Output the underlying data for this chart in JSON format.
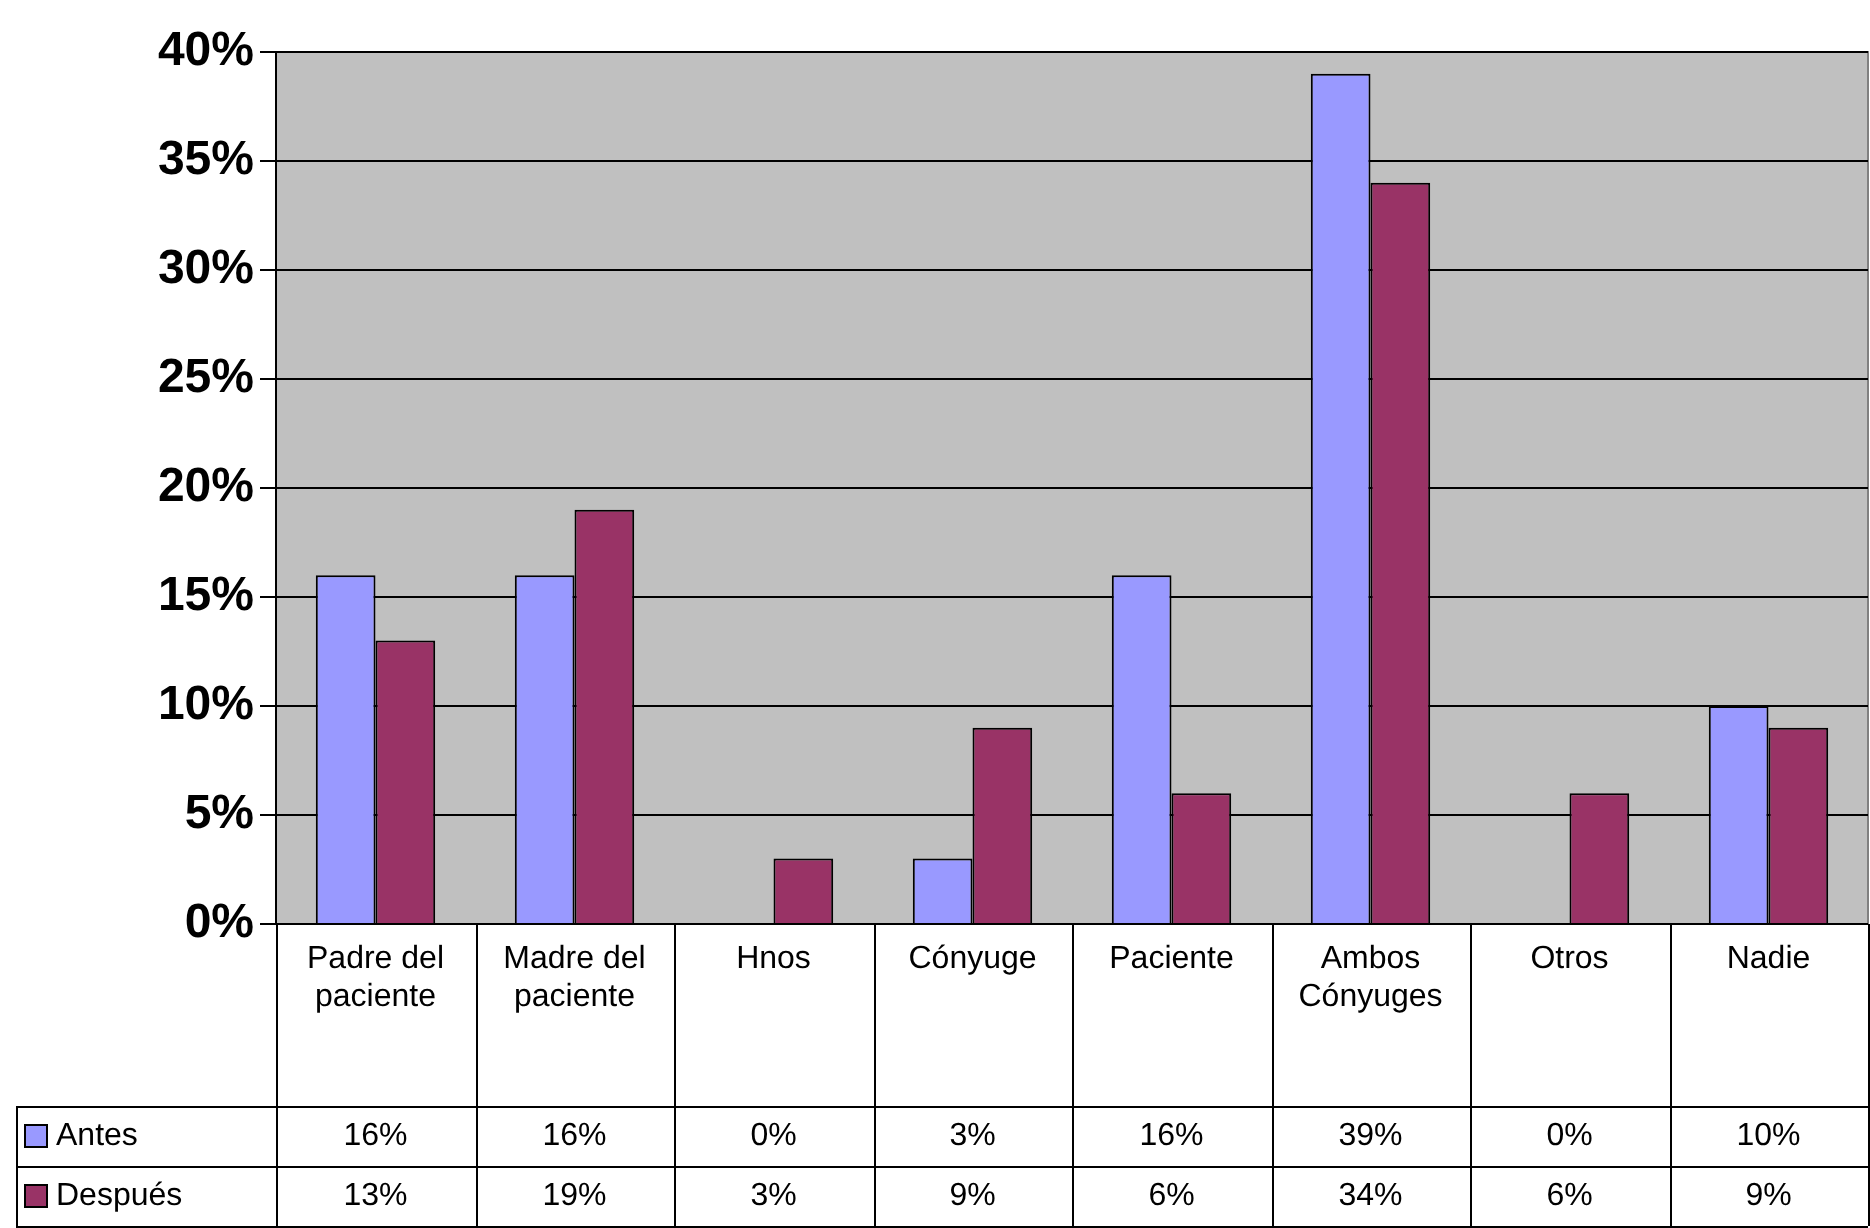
{
  "chart_data": {
    "type": "bar",
    "categories": [
      "Padre del paciente",
      "Madre del paciente",
      "Hnos",
      "Cónyuge",
      "Paciente",
      "Ambos Cónyuges",
      "Otros",
      "Nadie"
    ],
    "series": [
      {
        "name": "Antes",
        "color": "#9999ff",
        "values": [
          16,
          16,
          0,
          3,
          16,
          39,
          0,
          10
        ],
        "value_labels": [
          "16%",
          "16%",
          "0%",
          "3%",
          "16%",
          "39%",
          "0%",
          "10%"
        ]
      },
      {
        "name": "Después",
        "color": "#993366",
        "values": [
          13,
          19,
          3,
          9,
          6,
          34,
          6,
          9
        ],
        "value_labels": [
          "13%",
          "19%",
          "3%",
          "9%",
          "6%",
          "34%",
          "6%",
          "9%"
        ]
      }
    ],
    "ylim": [
      0,
      40
    ],
    "yticks": [
      {
        "value": 0,
        "label": "0%"
      },
      {
        "value": 5,
        "label": "5%"
      },
      {
        "value": 10,
        "label": "10%"
      },
      {
        "value": 15,
        "label": "15%"
      },
      {
        "value": 20,
        "label": "20%"
      },
      {
        "value": 25,
        "label": "25%"
      },
      {
        "value": 30,
        "label": "30%"
      },
      {
        "value": 35,
        "label": "35%"
      },
      {
        "value": 40,
        "label": "40%"
      }
    ],
    "grid": "y",
    "legend": "bottom left"
  }
}
